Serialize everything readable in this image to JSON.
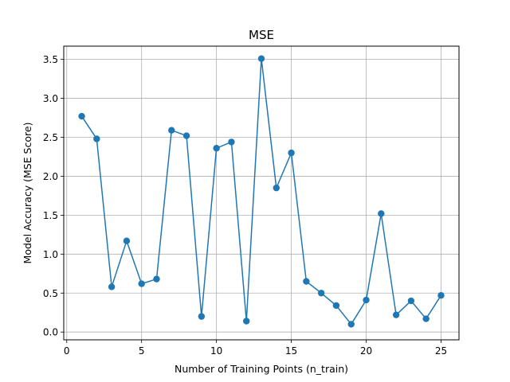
{
  "chart_data": {
    "type": "line",
    "title": "MSE",
    "xlabel": "Number of Training Points (n_train)",
    "ylabel": "Model Accuracy (MSE Score)",
    "xlim": [
      -0.2,
      26.2
    ],
    "ylim": [
      -0.1,
      3.67
    ],
    "x_ticks": [
      0,
      5,
      10,
      15,
      20,
      25
    ],
    "y_ticks": [
      0.0,
      0.5,
      1.0,
      1.5,
      2.0,
      2.5,
      3.0,
      3.5
    ],
    "x_tick_labels": [
      "0",
      "5",
      "10",
      "15",
      "20",
      "25"
    ],
    "y_tick_labels": [
      "0.0",
      "0.5",
      "1.0",
      "1.5",
      "2.0",
      "2.5",
      "3.0",
      "3.5"
    ],
    "grid": true,
    "marker": "circle",
    "colors": {
      "line": "#1f77b4",
      "grid": "#b0b0b0",
      "axes": "#000000"
    },
    "x": [
      1,
      2,
      3,
      4,
      5,
      6,
      7,
      8,
      9,
      10,
      11,
      12,
      13,
      14,
      15,
      16,
      17,
      18,
      19,
      20,
      21,
      22,
      23,
      24,
      25
    ],
    "series": [
      {
        "values": [
          2.77,
          2.48,
          0.58,
          1.17,
          0.62,
          0.68,
          2.59,
          2.52,
          0.2,
          2.36,
          2.44,
          0.14,
          3.51,
          1.85,
          2.3,
          0.65,
          0.5,
          0.34,
          0.1,
          0.41,
          1.52,
          0.22,
          0.4,
          0.17,
          0.47
        ]
      }
    ]
  }
}
